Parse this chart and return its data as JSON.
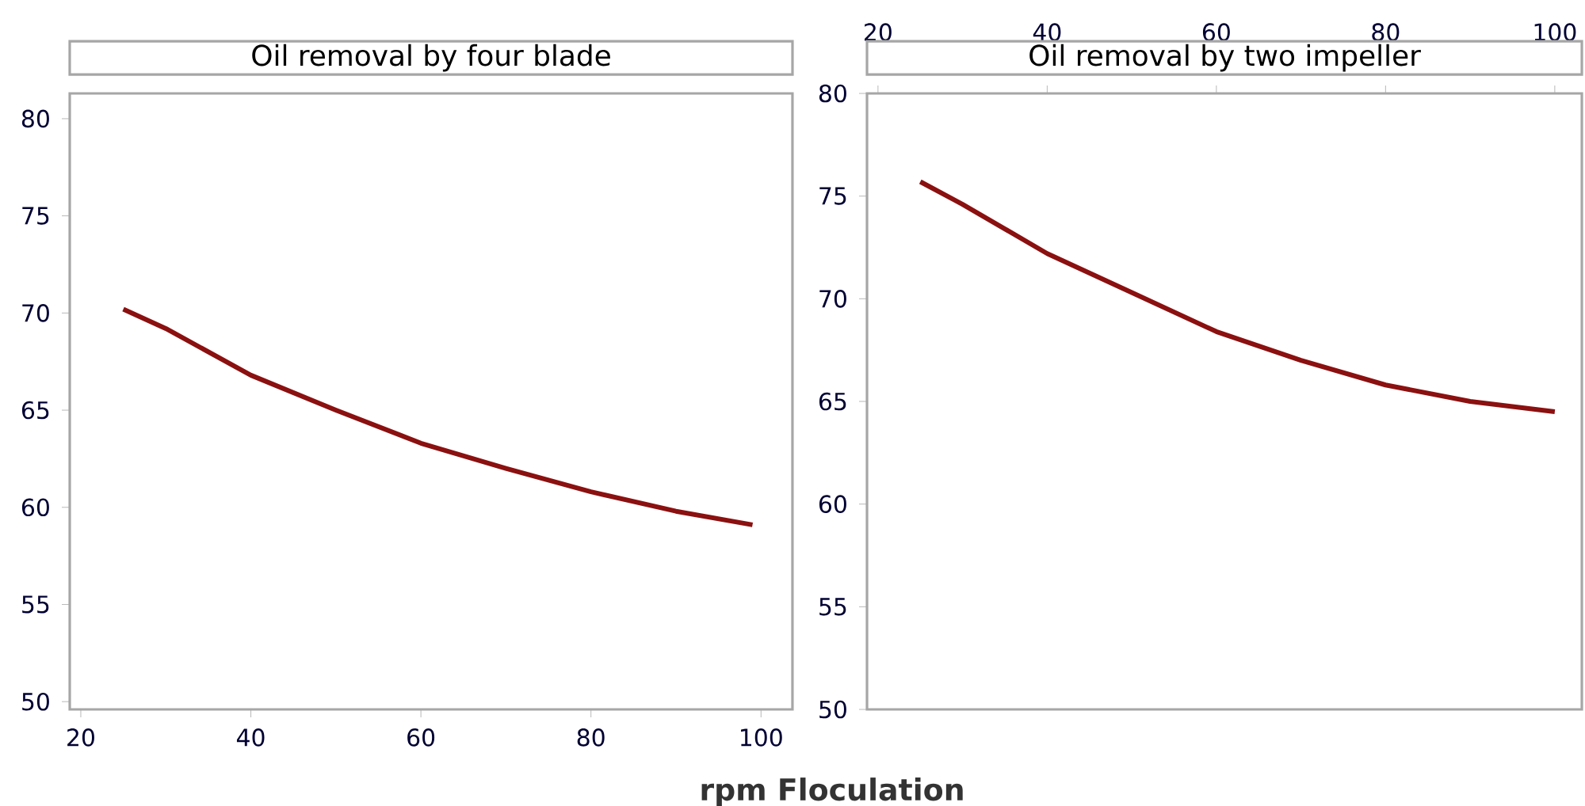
{
  "chart_data": [
    {
      "type": "line",
      "title": "Oil removal by four blade",
      "xlabel": "rpm Floculation",
      "x": [
        25,
        30,
        40,
        50,
        60,
        70,
        80,
        90,
        99
      ],
      "series": [
        {
          "color": "#8b1010",
          "values": [
            70.2,
            69.2,
            66.8,
            65.0,
            63.3,
            62.0,
            60.8,
            59.8,
            59.1
          ]
        }
      ],
      "xlim": [
        18.7,
        103.7
      ],
      "xticks": [
        20,
        40,
        60,
        80,
        100
      ],
      "ylim": [
        49.6,
        81.3
      ],
      "yticks": [
        50,
        55,
        60,
        65,
        70,
        75,
        80
      ],
      "grid": false,
      "marker": "none",
      "line_style": "solid"
    },
    {
      "type": "line",
      "title": "Oil removal by two impeller",
      "x": [
        25,
        30,
        40,
        50,
        60,
        70,
        80,
        90,
        100
      ],
      "series": [
        {
          "color": "#8b1010",
          "values": [
            75.7,
            74.6,
            72.2,
            70.3,
            68.4,
            67.0,
            65.8,
            65.0,
            64.5
          ]
        }
      ],
      "xlim": [
        18.7,
        103.2
      ],
      "xticks": [
        20,
        40,
        60,
        80,
        100
      ],
      "ylim": [
        50,
        80
      ],
      "yticks": [
        50,
        55,
        60,
        65,
        70,
        75,
        80
      ],
      "grid": false,
      "marker": "none",
      "line_style": "solid"
    }
  ]
}
